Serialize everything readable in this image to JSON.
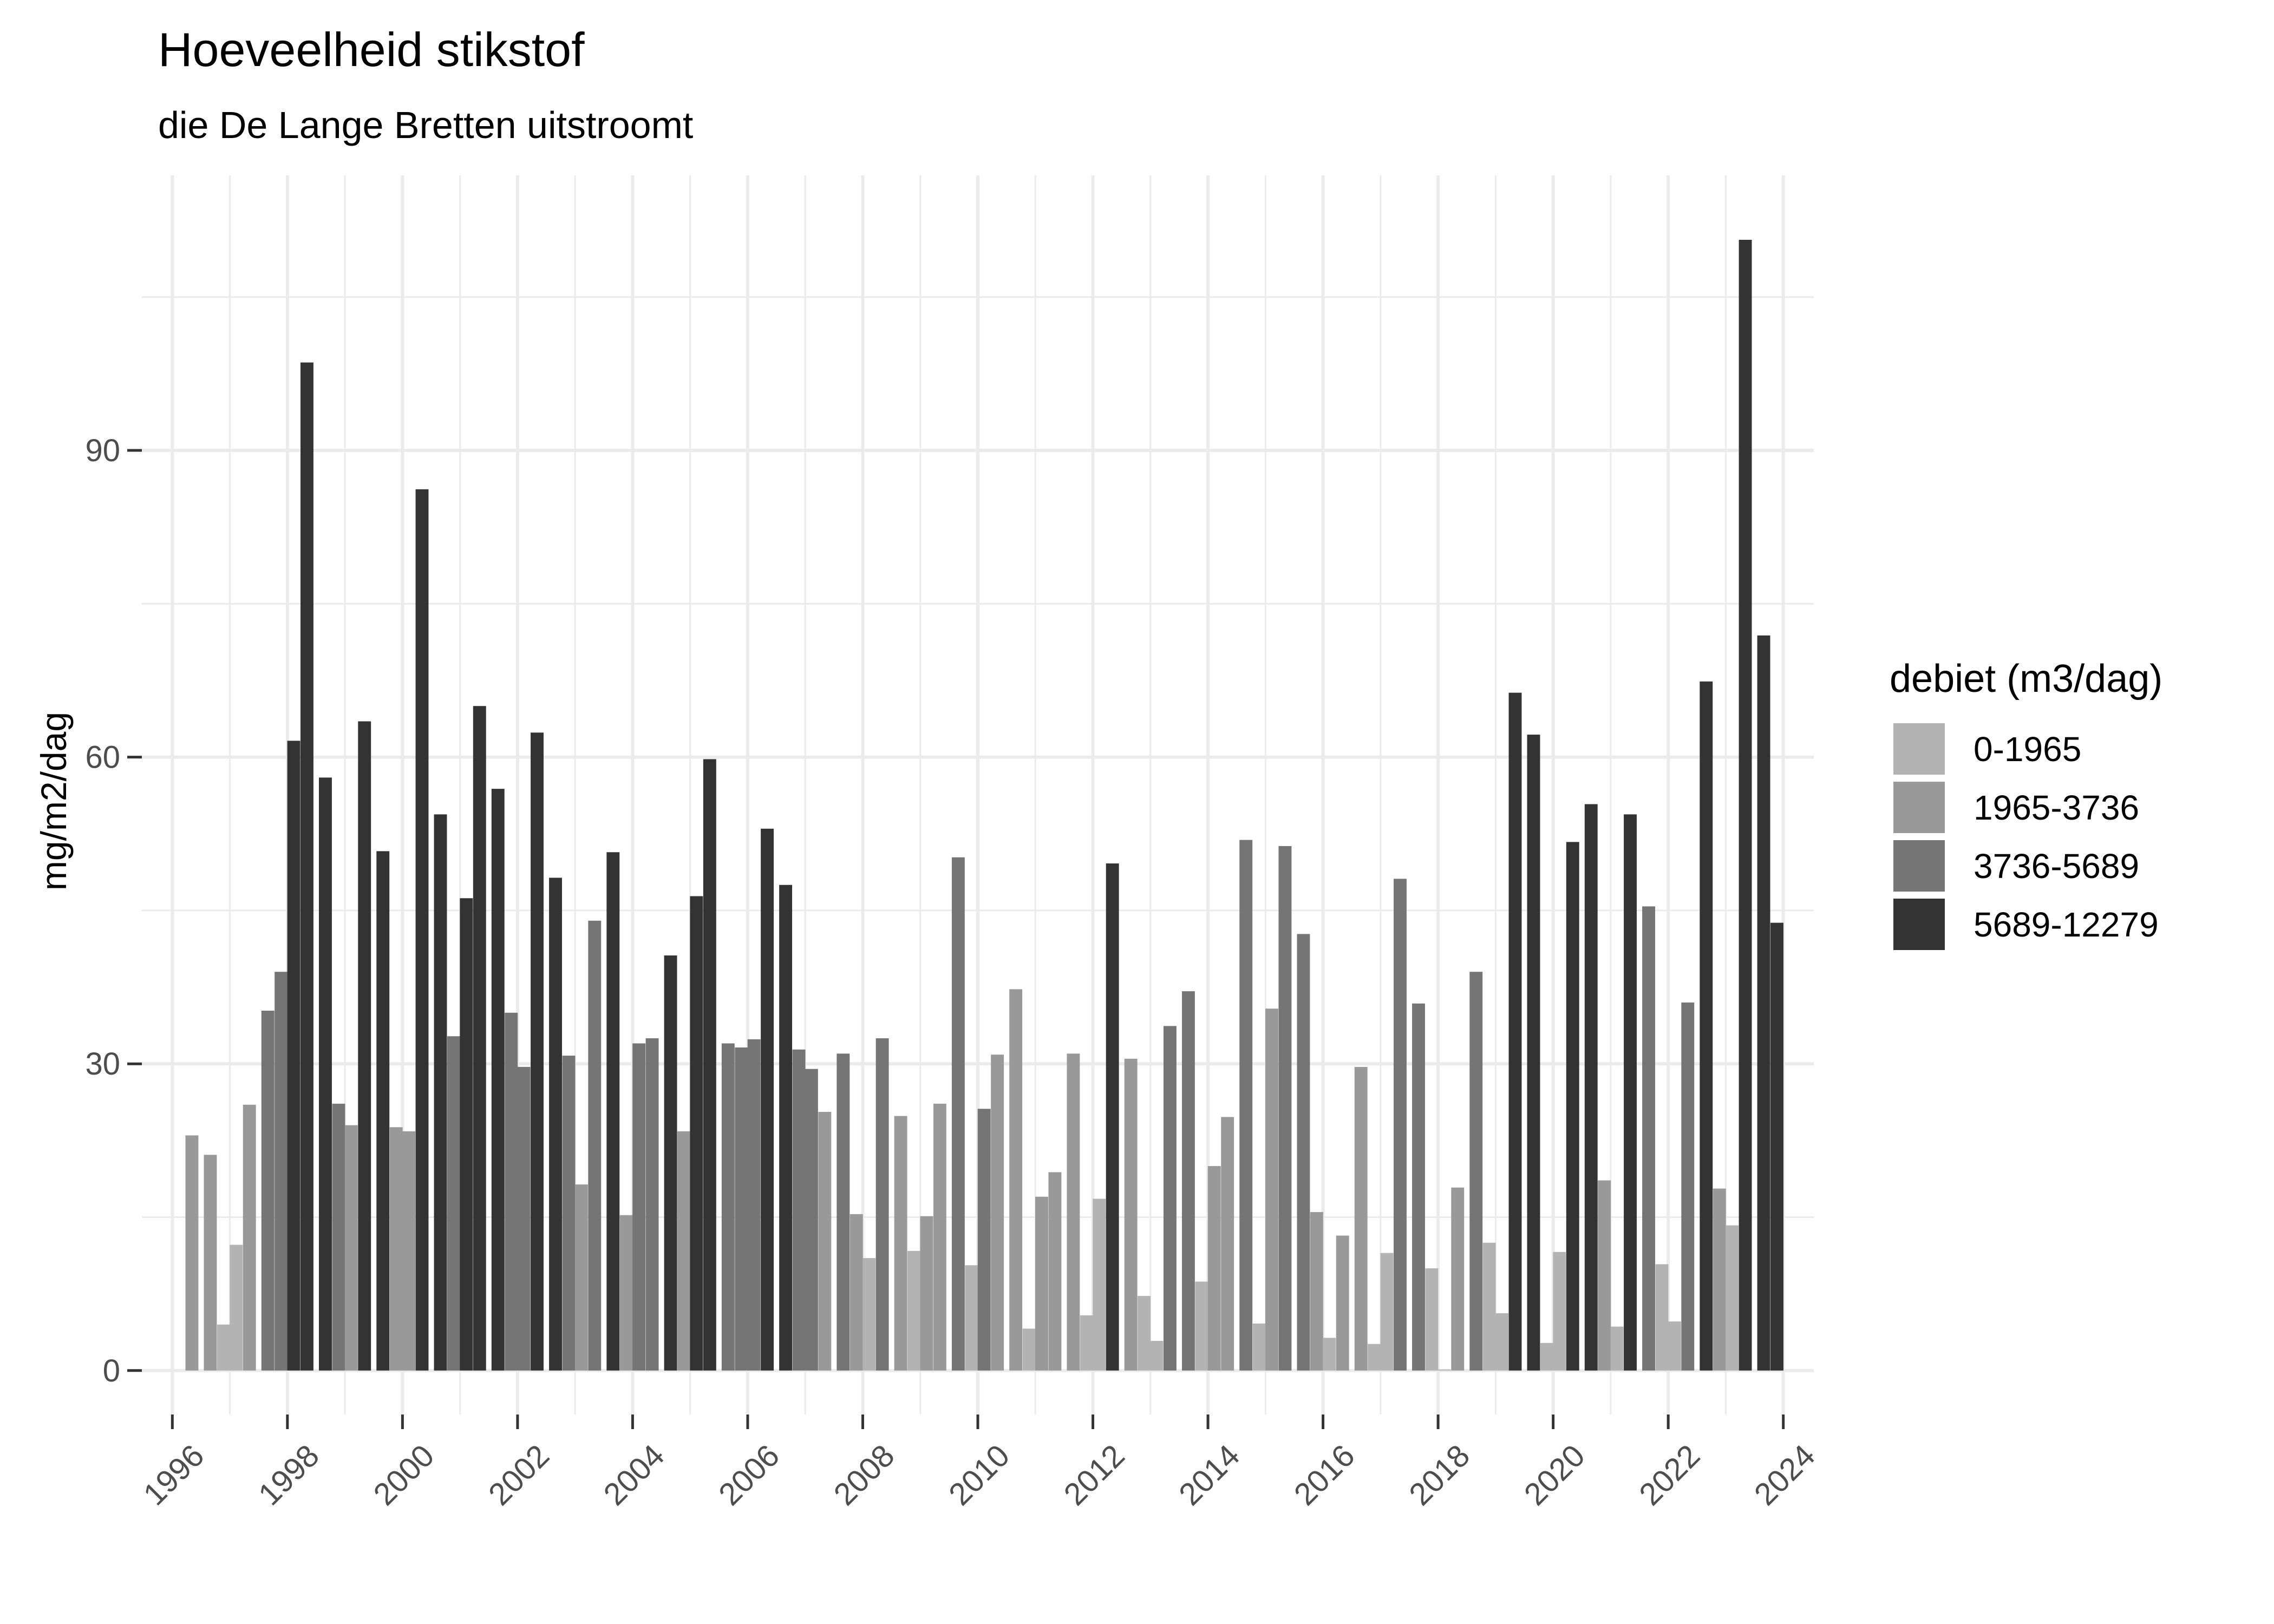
{
  "chart_data": {
    "type": "bar",
    "title": "Hoeveelheid stikstof",
    "subtitle": "die De Lange Bretten uitstroomt",
    "xlabel": "",
    "ylabel": "mg/m2/dag",
    "xlim": [
      1995.47,
      2024.53
    ],
    "ylim": [
      -4.3,
      116.9
    ],
    "x_ticks": [
      1996,
      1998,
      2000,
      2002,
      2004,
      2006,
      2008,
      2010,
      2012,
      2014,
      2016,
      2018,
      2020,
      2022,
      2024
    ],
    "y_ticks": [
      0,
      30,
      60,
      90
    ],
    "grid": true,
    "legend": {
      "title": "debiet (m3/dag)",
      "placement": "right",
      "entries": [
        {
          "label": "0-1965",
          "color": "#b3b3b3"
        },
        {
          "label": "1965-3736",
          "color": "#999999"
        },
        {
          "label": "3736-5689",
          "color": "#757575"
        },
        {
          "label": "5689-12279",
          "color": "#333333"
        }
      ]
    },
    "columns": [
      "x",
      "y",
      "debiet"
    ],
    "bars": [
      [
        1996.34,
        23.0,
        "1965-3736"
      ],
      [
        1996.66,
        21.1,
        "1965-3736"
      ],
      [
        1996.89,
        4.5,
        "0-1965"
      ],
      [
        1997.11,
        12.3,
        "0-1965"
      ],
      [
        1997.34,
        26.0,
        "1965-3736"
      ],
      [
        1997.66,
        35.2,
        "3736-5689"
      ],
      [
        1997.89,
        39.0,
        "3736-5689"
      ],
      [
        1998.11,
        61.6,
        "5689-12279"
      ],
      [
        1998.34,
        98.6,
        "5689-12279"
      ],
      [
        1998.66,
        58.0,
        "5689-12279"
      ],
      [
        1998.89,
        26.1,
        "3736-5689"
      ],
      [
        1999.11,
        24.0,
        "1965-3736"
      ],
      [
        1999.34,
        63.5,
        "5689-12279"
      ],
      [
        1999.66,
        50.8,
        "5689-12279"
      ],
      [
        1999.89,
        23.8,
        "1965-3736"
      ],
      [
        2000.11,
        23.4,
        "1965-3736"
      ],
      [
        2000.34,
        86.2,
        "5689-12279"
      ],
      [
        2000.66,
        54.4,
        "5689-12279"
      ],
      [
        2000.89,
        32.7,
        "3736-5689"
      ],
      [
        2001.11,
        46.2,
        "5689-12279"
      ],
      [
        2001.34,
        65.0,
        "5689-12279"
      ],
      [
        2001.66,
        56.9,
        "5689-12279"
      ],
      [
        2001.89,
        35.0,
        "3736-5689"
      ],
      [
        2002.11,
        29.7,
        "3736-5689"
      ],
      [
        2002.34,
        62.4,
        "5689-12279"
      ],
      [
        2002.66,
        48.2,
        "5689-12279"
      ],
      [
        2002.89,
        30.8,
        "3736-5689"
      ],
      [
        2003.11,
        18.2,
        "1965-3736"
      ],
      [
        2003.34,
        44.0,
        "3736-5689"
      ],
      [
        2003.66,
        50.7,
        "5689-12279"
      ],
      [
        2003.89,
        15.2,
        "1965-3736"
      ],
      [
        2004.11,
        32.0,
        "3736-5689"
      ],
      [
        2004.34,
        32.5,
        "3736-5689"
      ],
      [
        2004.66,
        40.6,
        "5689-12279"
      ],
      [
        2004.89,
        23.4,
        "1965-3736"
      ],
      [
        2005.11,
        46.4,
        "5689-12279"
      ],
      [
        2005.34,
        59.8,
        "5689-12279"
      ],
      [
        2005.66,
        32.0,
        "3736-5689"
      ],
      [
        2005.89,
        31.6,
        "3736-5689"
      ],
      [
        2006.11,
        32.4,
        "3736-5689"
      ],
      [
        2006.34,
        53.0,
        "5689-12279"
      ],
      [
        2006.66,
        47.5,
        "5689-12279"
      ],
      [
        2006.89,
        31.4,
        "3736-5689"
      ],
      [
        2007.11,
        29.5,
        "3736-5689"
      ],
      [
        2007.34,
        25.3,
        "1965-3736"
      ],
      [
        2007.66,
        31.0,
        "3736-5689"
      ],
      [
        2007.89,
        15.3,
        "1965-3736"
      ],
      [
        2008.11,
        11.0,
        "0-1965"
      ],
      [
        2008.34,
        32.5,
        "3736-5689"
      ],
      [
        2008.66,
        24.9,
        "1965-3736"
      ],
      [
        2008.89,
        11.7,
        "0-1965"
      ],
      [
        2009.11,
        15.1,
        "1965-3736"
      ],
      [
        2009.34,
        26.1,
        "1965-3736"
      ],
      [
        2009.66,
        50.2,
        "3736-5689"
      ],
      [
        2009.89,
        10.3,
        "0-1965"
      ],
      [
        2010.11,
        25.6,
        "3736-5689"
      ],
      [
        2010.34,
        30.9,
        "1965-3736"
      ],
      [
        2010.66,
        37.3,
        "1965-3736"
      ],
      [
        2010.89,
        4.1,
        "0-1965"
      ],
      [
        2011.11,
        17.0,
        "1965-3736"
      ],
      [
        2011.34,
        19.4,
        "1965-3736"
      ],
      [
        2011.66,
        31.0,
        "1965-3736"
      ],
      [
        2011.89,
        5.4,
        "0-1965"
      ],
      [
        2012.11,
        16.8,
        "0-1965"
      ],
      [
        2012.34,
        49.6,
        "5689-12279"
      ],
      [
        2012.66,
        30.5,
        "1965-3736"
      ],
      [
        2012.89,
        7.3,
        "0-1965"
      ],
      [
        2013.11,
        2.9,
        "0-1965"
      ],
      [
        2013.34,
        33.7,
        "3736-5689"
      ],
      [
        2013.66,
        37.1,
        "3736-5689"
      ],
      [
        2013.89,
        8.7,
        "0-1965"
      ],
      [
        2014.11,
        20.0,
        "1965-3736"
      ],
      [
        2014.34,
        24.8,
        "1965-3736"
      ],
      [
        2014.66,
        51.9,
        "3736-5689"
      ],
      [
        2014.89,
        4.6,
        "0-1965"
      ],
      [
        2015.11,
        35.4,
        "1965-3736"
      ],
      [
        2015.34,
        51.3,
        "3736-5689"
      ],
      [
        2015.66,
        42.7,
        "3736-5689"
      ],
      [
        2015.89,
        15.5,
        "1965-3736"
      ],
      [
        2016.11,
        3.2,
        "0-1965"
      ],
      [
        2016.34,
        13.2,
        "1965-3736"
      ],
      [
        2016.66,
        29.7,
        "1965-3736"
      ],
      [
        2016.89,
        2.6,
        "0-1965"
      ],
      [
        2017.11,
        11.5,
        "0-1965"
      ],
      [
        2017.34,
        48.1,
        "3736-5689"
      ],
      [
        2017.66,
        35.9,
        "3736-5689"
      ],
      [
        2017.89,
        10.0,
        "0-1965"
      ],
      [
        2018.11,
        0.1,
        "0-1965"
      ],
      [
        2018.34,
        17.9,
        "1965-3736"
      ],
      [
        2018.66,
        39.0,
        "3736-5689"
      ],
      [
        2018.89,
        12.5,
        "0-1965"
      ],
      [
        2019.11,
        5.6,
        "0-1965"
      ],
      [
        2019.34,
        66.3,
        "5689-12279"
      ],
      [
        2019.66,
        62.2,
        "5689-12279"
      ],
      [
        2019.89,
        2.7,
        "0-1965"
      ],
      [
        2020.11,
        11.6,
        "0-1965"
      ],
      [
        2020.34,
        51.7,
        "5689-12279"
      ],
      [
        2020.66,
        55.4,
        "5689-12279"
      ],
      [
        2020.89,
        18.6,
        "1965-3736"
      ],
      [
        2021.11,
        4.3,
        "0-1965"
      ],
      [
        2021.34,
        54.4,
        "5689-12279"
      ],
      [
        2021.66,
        45.4,
        "3736-5689"
      ],
      [
        2021.89,
        10.4,
        "0-1965"
      ],
      [
        2022.11,
        4.8,
        "0-1965"
      ],
      [
        2022.34,
        36.0,
        "3736-5689"
      ],
      [
        2022.66,
        67.4,
        "5689-12279"
      ],
      [
        2022.89,
        17.8,
        "1965-3736"
      ],
      [
        2023.11,
        14.2,
        "0-1965"
      ],
      [
        2023.34,
        110.6,
        "5689-12279"
      ],
      [
        2023.66,
        71.9,
        "5689-12279"
      ],
      [
        2023.89,
        43.8,
        "5689-12279"
      ]
    ]
  }
}
